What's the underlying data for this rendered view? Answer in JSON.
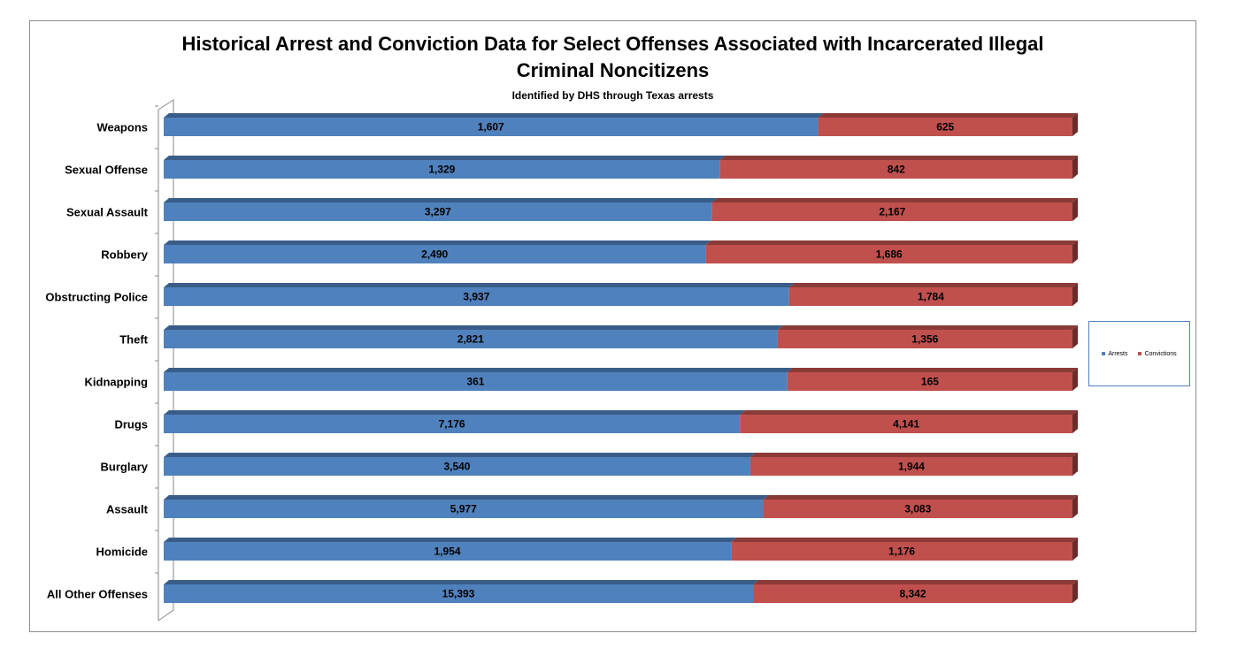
{
  "chart_data": {
    "type": "bar",
    "orientation": "horizontal",
    "stacking": "100%",
    "style": "3d",
    "title": "Historical Arrest and Conviction Data for Select Offenses Associated with Incarcerated Illegal Criminal Noncitizens",
    "title_lines": [
      "Historical Arrest and Conviction Data for Select Offenses Associated with Incarcerated Illegal",
      "Criminal Noncitizens"
    ],
    "subtitle": "Identified by DHS through Texas arrests",
    "categories": [
      "Weapons",
      "Sexual Offense",
      "Sexual Assault",
      "Robbery",
      "Obstructing Police",
      "Theft",
      "Kidnapping",
      "Drugs",
      "Burglary",
      "Assault",
      "Homicide",
      "All Other Offenses"
    ],
    "series": [
      {
        "name": "Arrests",
        "color": "#4f81bd",
        "values": [
          1607,
          1329,
          3297,
          2490,
          3937,
          2821,
          361,
          7176,
          3540,
          5977,
          1954,
          15393
        ],
        "labels": [
          "1,607",
          "1,329",
          "3,297",
          "2,490",
          "3,937",
          "2,821",
          "361",
          "7,176",
          "3,540",
          "5,977",
          "1,954",
          "15,393"
        ]
      },
      {
        "name": "Convictions",
        "color": "#c0504d",
        "values": [
          625,
          842,
          2167,
          1686,
          1784,
          1356,
          165,
          4141,
          1944,
          3083,
          1176,
          8342
        ],
        "labels": [
          "625",
          "842",
          "2,167",
          "1,686",
          "1,784",
          "1,356",
          "165",
          "4,141",
          "1,944",
          "3,083",
          "1,176",
          "8,342"
        ]
      }
    ],
    "legend": {
      "position": "right"
    },
    "grid": false
  }
}
